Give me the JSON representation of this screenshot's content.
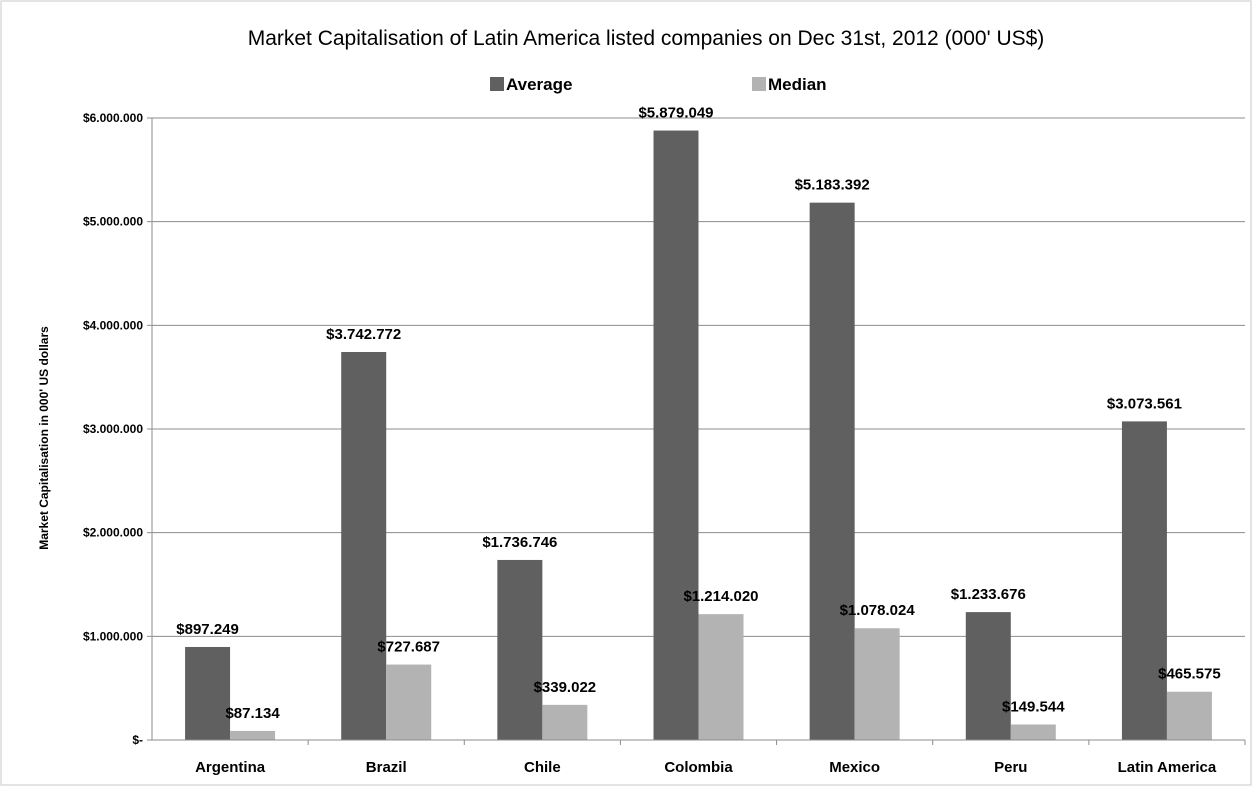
{
  "chart_data": {
    "type": "bar",
    "title": "Market Capitalisation  of Latin America listed companies on Dec 31st, 2012 (000' US$)",
    "ylabel": "Market Capitalisation in 000'  US dollars",
    "xlabel": "",
    "categories": [
      "Argentina",
      "Brazil",
      "Chile",
      "Colombia",
      "Mexico",
      "Peru",
      "Latin America"
    ],
    "series": [
      {
        "name": "Average",
        "color": "#606060",
        "values": [
          897249,
          3742772,
          1736746,
          5879049,
          5183392,
          1233676,
          3073561
        ],
        "labels": [
          "$897.249",
          "$3.742.772",
          "$1.736.746",
          "$5.879.049",
          "$5.183.392",
          "$1.233.676",
          "$3.073.561"
        ]
      },
      {
        "name": "Median",
        "color": "#b3b3b3",
        "values": [
          87134,
          727687,
          339022,
          1214020,
          1078024,
          149544,
          465575
        ],
        "labels": [
          "$87.134",
          "$727.687",
          "$339.022",
          "$1.214.020",
          "$1.078.024",
          "$149.544",
          "$465.575"
        ]
      }
    ],
    "ylim": [
      0,
      6000000
    ],
    "yticks": [
      0,
      1000000,
      2000000,
      3000000,
      4000000,
      5000000,
      6000000
    ],
    "ytick_labels": [
      "$-",
      "$1.000.000",
      "$2.000.000",
      "$3.000.000",
      "$4.000.000",
      "$5.000.000",
      "$6.000.000"
    ],
    "grid": true,
    "legend_position": "top-center"
  }
}
